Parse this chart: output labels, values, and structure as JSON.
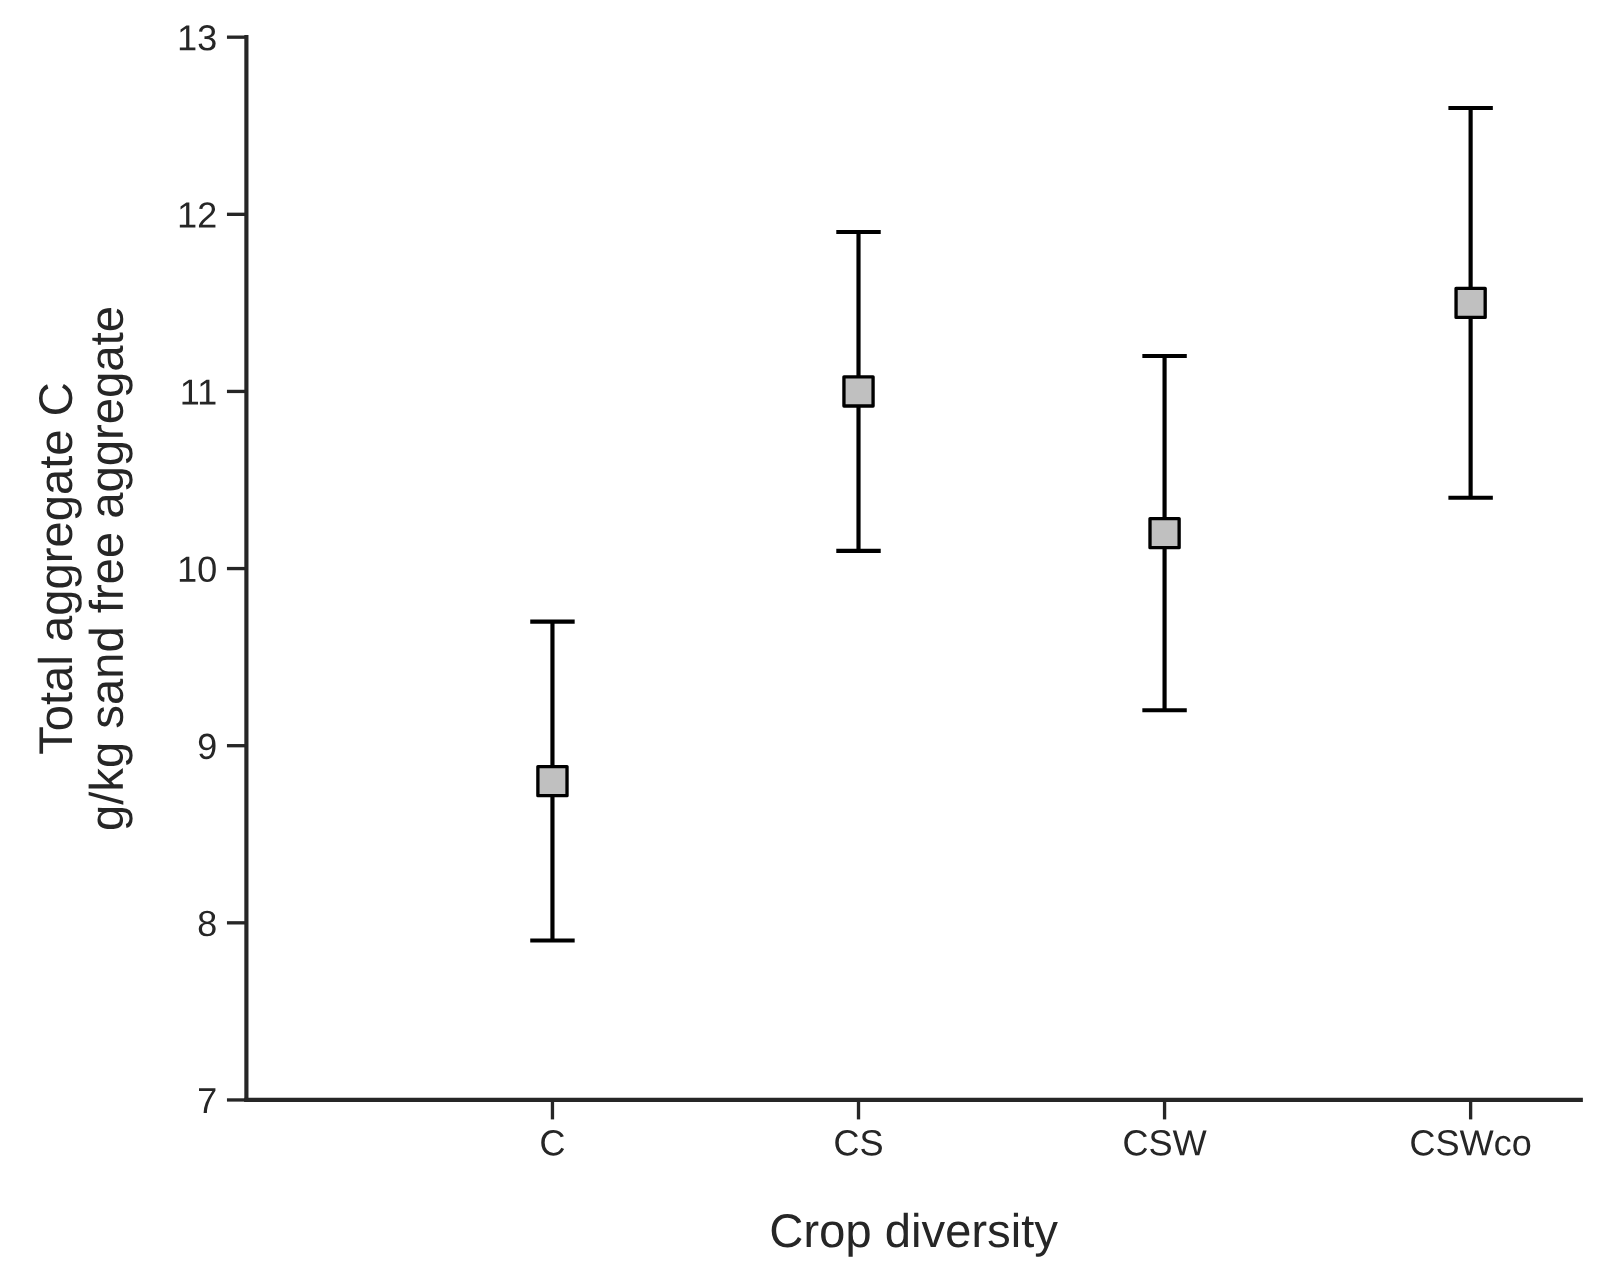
{
  "chart_data": {
    "type": "scatter",
    "xlabel": "Crop diversity",
    "ylabel": "Total aggregate C\ng/kg sand free aggregate",
    "categories": [
      "C",
      "CS",
      "CSW",
      "CSWco"
    ],
    "series": [
      {
        "color": "#c0c0c0",
        "values": [
          8.8,
          11.0,
          10.2,
          11.5
        ],
        "errors": [
          0.9,
          0.9,
          1.0,
          1.1
        ]
      }
    ],
    "marker": "square",
    "ylim": [
      7,
      13
    ],
    "yticks": [
      7,
      8,
      9,
      10,
      11,
      12,
      13
    ],
    "grid": false,
    "legend": false
  }
}
